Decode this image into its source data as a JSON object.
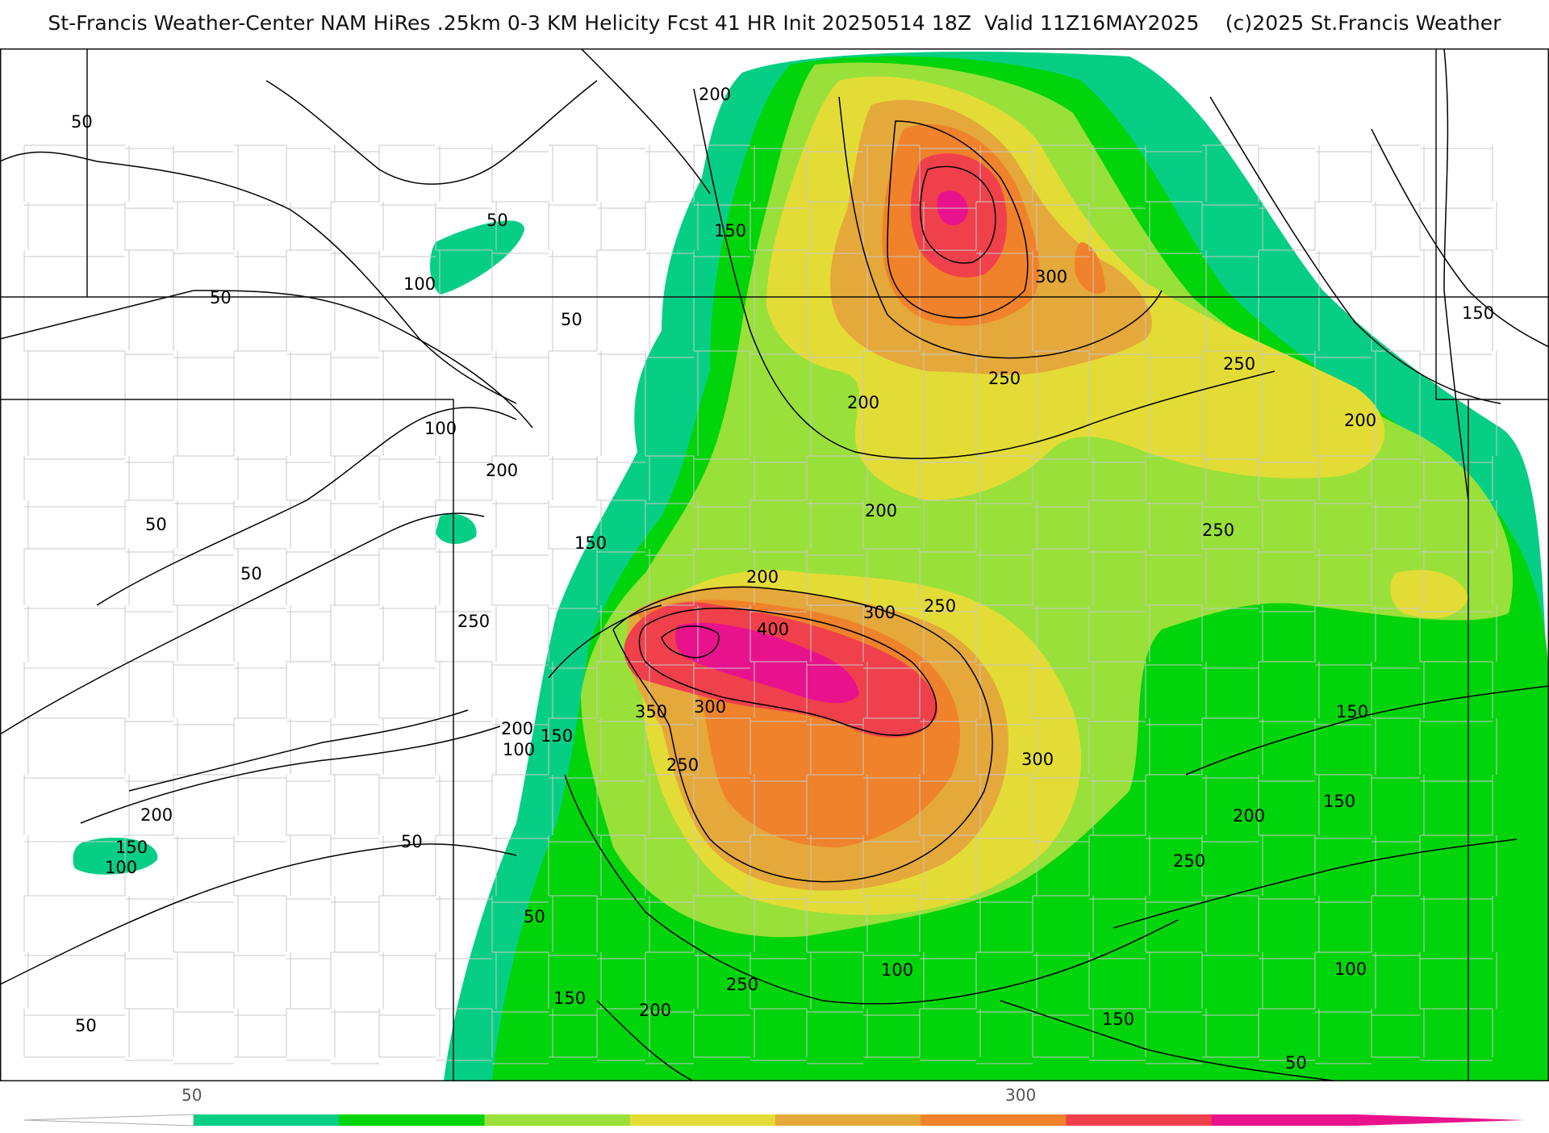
{
  "title": "St-Francis Weather-Center NAM HiRes .25km 0-3 KM Helicity Fcst 41 HR Init 20250514 18Z  Valid 11Z16MAY2025    (c)2025 St.Francis Weather",
  "colors": {
    "b50": "#06cf85",
    "b100": "#00d40a",
    "b150": "#99e03a",
    "b200": "#e4dc36",
    "b250": "#e5a83a",
    "b300": "#ef822a",
    "b350": "#f0404c",
    "b400": "#e8128c",
    "border": "#111111",
    "county": "#c8c8c8",
    "contour": "#000000"
  },
  "contour_labels": [
    {
      "id": "l1",
      "text": "50"
    },
    {
      "id": "l2",
      "text": "50"
    },
    {
      "id": "l3",
      "text": "100"
    },
    {
      "id": "l4",
      "text": "50"
    },
    {
      "id": "l5",
      "text": "50"
    },
    {
      "id": "l6",
      "text": "200"
    },
    {
      "id": "l7",
      "text": "150"
    },
    {
      "id": "l8",
      "text": "300"
    },
    {
      "id": "l9",
      "text": "150"
    },
    {
      "id": "l10",
      "text": "250"
    },
    {
      "id": "l11",
      "text": "200"
    },
    {
      "id": "l12",
      "text": "250"
    },
    {
      "id": "l13",
      "text": "200"
    },
    {
      "id": "l14",
      "text": "100"
    },
    {
      "id": "l15",
      "text": "200"
    },
    {
      "id": "l16",
      "text": "50"
    },
    {
      "id": "l17",
      "text": "50"
    },
    {
      "id": "l18",
      "text": "150"
    },
    {
      "id": "l19",
      "text": "200"
    },
    {
      "id": "l20",
      "text": "200"
    },
    {
      "id": "l21",
      "text": "250"
    },
    {
      "id": "l22",
      "text": "250"
    },
    {
      "id": "l23",
      "text": "300"
    },
    {
      "id": "l24",
      "text": "250"
    },
    {
      "id": "l25",
      "text": "400"
    },
    {
      "id": "l26",
      "text": "350"
    },
    {
      "id": "l27",
      "text": "300"
    },
    {
      "id": "l28",
      "text": "200"
    },
    {
      "id": "l29",
      "text": "150"
    },
    {
      "id": "l30",
      "text": "100"
    },
    {
      "id": "l31",
      "text": "250"
    },
    {
      "id": "l32",
      "text": "300"
    },
    {
      "id": "l33",
      "text": "150"
    },
    {
      "id": "l34",
      "text": "200"
    },
    {
      "id": "l35",
      "text": "150"
    },
    {
      "id": "l36",
      "text": "150"
    },
    {
      "id": "l37",
      "text": "100"
    },
    {
      "id": "l38",
      "text": "200"
    },
    {
      "id": "l39",
      "text": "50"
    },
    {
      "id": "l40",
      "text": "250"
    },
    {
      "id": "l41",
      "text": "50"
    },
    {
      "id": "l42",
      "text": "100"
    },
    {
      "id": "l43",
      "text": "150"
    },
    {
      "id": "l44",
      "text": "200"
    },
    {
      "id": "l45",
      "text": "250"
    },
    {
      "id": "l46",
      "text": "150"
    },
    {
      "id": "l47",
      "text": "100"
    },
    {
      "id": "l48",
      "text": "50"
    },
    {
      "id": "l49",
      "text": "50"
    }
  ],
  "legend": {
    "tick_labels": [
      "50",
      "300"
    ],
    "swatches": [
      "#06cf85",
      "#00d40a",
      "#99e03a",
      "#e4dc36",
      "#e5a83a",
      "#ef822a",
      "#f0404c",
      "#e8128c"
    ]
  }
}
